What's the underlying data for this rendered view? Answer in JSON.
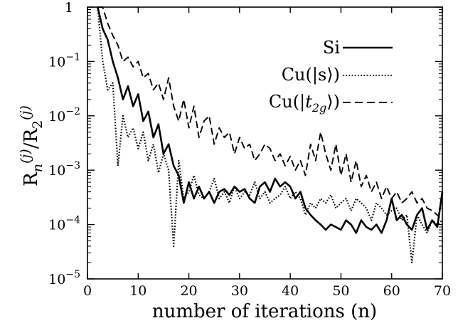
{
  "chart_data": {
    "type": "line",
    "xlabel": "number of iterations (n)",
    "ylabel": "Rn(j)/R2(j)",
    "ylabel_parts": {
      "r1": "R",
      "sub1": "n",
      "sup1": "(j)",
      "slash": "/",
      "r2": "R",
      "sub2": "2",
      "sup2": "(j)"
    },
    "xlim": [
      0,
      70
    ],
    "ylim": [
      1e-05,
      1
    ],
    "yscale": "log",
    "grid": false,
    "legend_position": "top-right",
    "x_ticks": [
      0,
      10,
      20,
      30,
      40,
      50,
      60,
      70
    ],
    "x_tick_labels": [
      "0",
      "10",
      "20",
      "30",
      "40",
      "50",
      "60",
      "70"
    ],
    "y_ticks": [
      1e-05,
      0.0001,
      0.001,
      0.01,
      0.1,
      1
    ],
    "y_tick_labels": [
      {
        "base": "10",
        "exp": "-5"
      },
      {
        "base": "10",
        "exp": "-4"
      },
      {
        "base": "10",
        "exp": "-3"
      },
      {
        "base": "10",
        "exp": "-2"
      },
      {
        "base": "10",
        "exp": "-1"
      },
      {
        "base": "1",
        "exp": ""
      }
    ],
    "series": [
      {
        "name": "Si",
        "style": "solid",
        "x": [
          2,
          3,
          4,
          5,
          6,
          7,
          8,
          9,
          10,
          11,
          12,
          13,
          14,
          15,
          16,
          17,
          18,
          19,
          20,
          21,
          22,
          23,
          24,
          25,
          26,
          27,
          28,
          29,
          30,
          31,
          32,
          33,
          34,
          35,
          36,
          37,
          38,
          39,
          40,
          41,
          42,
          43,
          44,
          45,
          46,
          47,
          48,
          49,
          50,
          51,
          52,
          53,
          54,
          55,
          56,
          57,
          58,
          59,
          60,
          61,
          62,
          63,
          64,
          65,
          66,
          67,
          68,
          69,
          70
        ],
        "y": [
          1,
          0.4,
          0.25,
          0.1,
          0.05,
          0.02,
          0.035,
          0.015,
          0.025,
          0.008,
          0.012,
          0.004,
          0.007,
          0.002,
          0.003,
          0.0012,
          0.0008,
          0.00025,
          0.0006,
          0.0003,
          0.0005,
          0.0003,
          0.0004,
          0.00025,
          0.0004,
          0.00045,
          0.00035,
          0.0005,
          0.0004,
          0.00045,
          0.0003,
          0.00025,
          0.0005,
          0.0006,
          0.0004,
          0.0007,
          0.0005,
          0.0006,
          0.0005,
          0.0003,
          0.0004,
          0.0002,
          0.00015,
          0.00012,
          0.0001,
          8e-05,
          0.0001,
          9e-05,
          8e-05,
          0.00012,
          0.0001,
          7e-05,
          0.00012,
          9e-05,
          8e-05,
          0.0001,
          7e-05,
          0.00012,
          0.0003,
          0.00012,
          0.00015,
          0.0001,
          8e-05,
          0.00015,
          0.0002,
          8e-05,
          0.00012,
          9e-05,
          0.0004
        ]
      },
      {
        "name": "Cu(|s⟩)",
        "style": "dotted",
        "x": [
          2,
          3,
          4,
          5,
          6,
          7,
          8,
          9,
          10,
          11,
          12,
          13,
          14,
          15,
          16,
          17,
          18,
          19,
          20,
          21,
          22,
          23,
          24,
          25,
          26,
          27,
          28,
          29,
          30,
          31,
          32,
          33,
          34,
          35,
          36,
          37,
          38,
          39,
          40,
          41,
          42,
          43,
          44,
          45,
          46,
          47,
          48,
          49,
          50,
          51,
          52,
          53,
          54,
          55,
          56,
          57,
          58,
          59,
          60,
          61,
          62,
          63,
          64,
          65,
          66,
          67,
          68,
          69,
          70
        ],
        "y": [
          1,
          0.1,
          0.03,
          0.04,
          0.0012,
          0.01,
          0.004,
          0.006,
          0.0025,
          0.005,
          0.0015,
          0.003,
          0.0009,
          0.002,
          0.001,
          4e-05,
          0.0015,
          0.0003,
          0.0004,
          0.0008,
          0.00035,
          0.0003,
          0.0004,
          0.0007,
          0.0003,
          0.0004,
          0.00025,
          0.0005,
          0.0003,
          0.0004,
          0.00035,
          0.0006,
          0.0003,
          0.0004,
          0.00025,
          0.0003,
          0.00035,
          0.0005,
          0.0003,
          0.0004,
          0.0003,
          0.00015,
          0.00025,
          0.0002,
          0.0003,
          0.00025,
          0.00035,
          0.0002,
          0.00025,
          0.0003,
          0.00018,
          0.0003,
          0.00025,
          0.0002,
          0.00012,
          0.00025,
          0.0002,
          0.00015,
          0.00018,
          0.0002,
          0.00012,
          0.00015,
          2e-05,
          0.00015,
          0.0001,
          7e-05,
          0.00012,
          0.0001,
          0.00012
        ]
      },
      {
        "name": "Cu(|t2g⟩)",
        "style": "dashed",
        "x": [
          2,
          3,
          4,
          5,
          6,
          7,
          8,
          9,
          10,
          11,
          12,
          13,
          14,
          15,
          16,
          17,
          18,
          19,
          20,
          21,
          22,
          23,
          24,
          25,
          26,
          27,
          28,
          29,
          30,
          31,
          32,
          33,
          34,
          35,
          36,
          37,
          38,
          39,
          40,
          41,
          42,
          43,
          44,
          45,
          46,
          47,
          48,
          49,
          50,
          51,
          52,
          53,
          54,
          55,
          56,
          57,
          58,
          59,
          60,
          61,
          62,
          63,
          64,
          65,
          66,
          67,
          68,
          69,
          70
        ],
        "y": [
          1,
          1,
          0.5,
          0.3,
          0.2,
          0.1,
          0.12,
          0.08,
          0.1,
          0.05,
          0.06,
          0.03,
          0.04,
          0.02,
          0.05,
          0.015,
          0.008,
          0.02,
          0.006,
          0.015,
          0.004,
          0.008,
          0.01,
          0.003,
          0.006,
          0.004,
          0.005,
          0.002,
          0.004,
          0.0025,
          0.003,
          0.0015,
          0.002,
          0.003,
          0.0025,
          0.0015,
          0.002,
          0.0012,
          0.0018,
          0.001,
          0.0015,
          0.0008,
          0.003,
          0.0015,
          0.005,
          0.002,
          0.001,
          0.003,
          0.0008,
          0.002,
          0.0006,
          0.0015,
          0.0005,
          0.0008,
          0.0004,
          0.0006,
          0.0003,
          0.0005,
          0.0003,
          0.0004,
          0.00025,
          0.0003,
          0.0004,
          0.00025,
          0.0003,
          0.0002,
          0.00018,
          0.00015,
          0.00012
        ]
      }
    ],
    "legend": [
      {
        "label": "Si",
        "style": "solid"
      },
      {
        "label": "Cu(|s⟩)",
        "style": "dotted"
      },
      {
        "prefix": "Cu(|",
        "italic": "t",
        "sub": "2g",
        "suffix": "⟩)",
        "style": "dashed"
      }
    ]
  }
}
